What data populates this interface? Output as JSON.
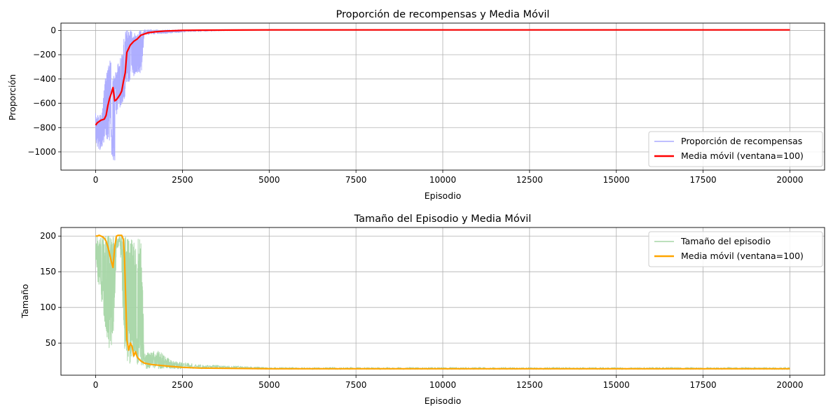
{
  "chart_data": [
    {
      "type": "line",
      "title": "Proporción de recompensas y Media Móvil",
      "xlabel": "Episodio",
      "ylabel": "Proporción",
      "xlim": [
        -1000,
        21000
      ],
      "ylim": [
        -1150,
        60
      ],
      "xticks": [
        0,
        2500,
        5000,
        7500,
        10000,
        12500,
        15000,
        17500,
        20000
      ],
      "yticks": [
        -1000,
        -800,
        -600,
        -400,
        -200,
        0
      ],
      "grid": true,
      "legend_position": "bottom-right",
      "series": [
        {
          "name": "Proporción de recompensas",
          "color": "#aaaaff",
          "style": "raw-noisy",
          "envelope": [
            {
              "x": 0,
              "low": -900,
              "high": -680
            },
            {
              "x": 60,
              "low": -980,
              "high": -700
            },
            {
              "x": 120,
              "low": -1000,
              "high": -680
            },
            {
              "x": 200,
              "low": -950,
              "high": -620
            },
            {
              "x": 280,
              "low": -880,
              "high": -350
            },
            {
              "x": 360,
              "low": -900,
              "high": -300
            },
            {
              "x": 430,
              "low": -950,
              "high": -180
            },
            {
              "x": 500,
              "low": -1100,
              "high": -350
            },
            {
              "x": 550,
              "low": -1110,
              "high": -380
            },
            {
              "x": 600,
              "low": -700,
              "high": -300
            },
            {
              "x": 680,
              "low": -650,
              "high": -250
            },
            {
              "x": 760,
              "low": -600,
              "high": -200
            },
            {
              "x": 830,
              "low": -560,
              "high": 0
            },
            {
              "x": 900,
              "low": -450,
              "high": 5
            },
            {
              "x": 1000,
              "low": -420,
              "high": 5
            },
            {
              "x": 1100,
              "low": -380,
              "high": 5
            },
            {
              "x": 1200,
              "low": -350,
              "high": 5
            },
            {
              "x": 1300,
              "low": -420,
              "high": 5
            },
            {
              "x": 1400,
              "low": -40,
              "high": 5
            },
            {
              "x": 1600,
              "low": -30,
              "high": 5
            },
            {
              "x": 2000,
              "low": -25,
              "high": 5
            },
            {
              "x": 2500,
              "low": -15,
              "high": 6
            },
            {
              "x": 3000,
              "low": -10,
              "high": 6
            },
            {
              "x": 4000,
              "low": 0,
              "high": 6
            },
            {
              "x": 5000,
              "low": 2,
              "high": 6
            },
            {
              "x": 20000,
              "low": 3,
              "high": 6
            }
          ]
        },
        {
          "name": "Media móvil (ventana=100)",
          "color": "#ff0000",
          "x": [
            0,
            50,
            100,
            150,
            200,
            250,
            300,
            350,
            400,
            450,
            500,
            550,
            600,
            650,
            700,
            750,
            800,
            850,
            900,
            950,
            1000,
            1100,
            1200,
            1300,
            1400,
            1500,
            1700,
            2000,
            2500,
            3000,
            4000,
            5000,
            10000,
            15000,
            20000
          ],
          "y": [
            -780,
            -760,
            -750,
            -740,
            -735,
            -730,
            -700,
            -620,
            -560,
            -520,
            -470,
            -580,
            -570,
            -550,
            -530,
            -500,
            -420,
            -350,
            -180,
            -150,
            -120,
            -90,
            -70,
            -40,
            -30,
            -20,
            -12,
            -5,
            0,
            2,
            3,
            4,
            4,
            4,
            4
          ]
        }
      ]
    },
    {
      "type": "line",
      "title": "Tamaño del Episodio y Media Móvil",
      "xlabel": "Episodio",
      "ylabel": "Tamaño",
      "xlim": [
        -1000,
        21000
      ],
      "ylim": [
        5,
        212
      ],
      "xticks": [
        0,
        2500,
        5000,
        7500,
        10000,
        12500,
        15000,
        17500,
        20000
      ],
      "yticks": [
        50,
        100,
        150,
        200
      ],
      "grid": true,
      "legend_position": "top-right",
      "series": [
        {
          "name": "Tamaño del episodio",
          "color": "#a6d6a6",
          "style": "raw-noisy",
          "envelope": [
            {
              "x": 0,
              "low": 160,
              "high": 200
            },
            {
              "x": 80,
              "low": 130,
              "high": 200
            },
            {
              "x": 160,
              "low": 110,
              "high": 200
            },
            {
              "x": 240,
              "low": 80,
              "high": 200
            },
            {
              "x": 320,
              "low": 60,
              "high": 200
            },
            {
              "x": 400,
              "low": 40,
              "high": 200
            },
            {
              "x": 480,
              "low": 40,
              "high": 200
            },
            {
              "x": 540,
              "low": 90,
              "high": 200
            },
            {
              "x": 600,
              "low": 180,
              "high": 200
            },
            {
              "x": 700,
              "low": 190,
              "high": 200
            },
            {
              "x": 780,
              "low": 100,
              "high": 200
            },
            {
              "x": 840,
              "low": 20,
              "high": 200
            },
            {
              "x": 900,
              "low": 14,
              "high": 200
            },
            {
              "x": 1000,
              "low": 14,
              "high": 200
            },
            {
              "x": 1100,
              "low": 14,
              "high": 200
            },
            {
              "x": 1200,
              "low": 14,
              "high": 200
            },
            {
              "x": 1320,
              "low": 14,
              "high": 200
            },
            {
              "x": 1400,
              "low": 14,
              "high": 35
            },
            {
              "x": 1800,
              "low": 14,
              "high": 40
            },
            {
              "x": 2200,
              "low": 14,
              "high": 25
            },
            {
              "x": 3000,
              "low": 14,
              "high": 20
            },
            {
              "x": 4000,
              "low": 14,
              "high": 18
            },
            {
              "x": 5000,
              "low": 13,
              "high": 16
            },
            {
              "x": 20000,
              "low": 13,
              "high": 16
            }
          ]
        },
        {
          "name": "Media móvil (ventana=100)",
          "color": "#ffa500",
          "x": [
            0,
            50,
            100,
            150,
            200,
            250,
            300,
            350,
            400,
            450,
            500,
            550,
            600,
            650,
            700,
            750,
            800,
            830,
            860,
            900,
            950,
            1000,
            1050,
            1100,
            1150,
            1200,
            1300,
            1400,
            1600,
            2000,
            2500,
            3000,
            5000,
            10000,
            15000,
            20000
          ],
          "y": [
            200,
            200,
            201,
            200,
            199,
            197,
            193,
            185,
            175,
            165,
            156,
            185,
            200,
            201,
            201,
            201,
            195,
            170,
            120,
            55,
            40,
            50,
            45,
            32,
            38,
            30,
            25,
            22,
            20,
            18,
            16,
            15,
            14,
            14,
            14,
            14
          ]
        }
      ]
    }
  ]
}
